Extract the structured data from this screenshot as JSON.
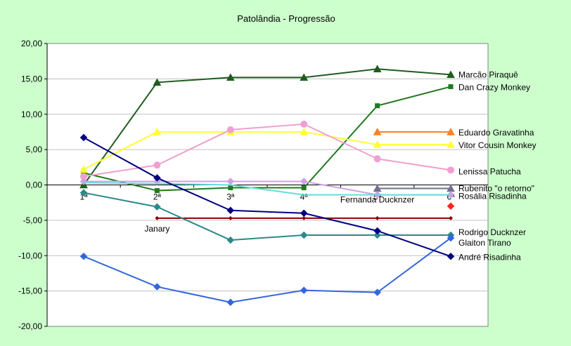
{
  "chart_data": {
    "type": "line",
    "title": "Patolândia - Progressão",
    "categories": [
      "1ª",
      "2ª",
      "3ª",
      "4ª",
      "5ª",
      "6ª"
    ],
    "ylim": [
      -20,
      20
    ],
    "yticks": [
      20,
      15,
      10,
      5,
      0,
      -5,
      -10,
      -15,
      -20
    ],
    "ytick_labels": [
      "20,00",
      "15,00",
      "10,00",
      "5,00",
      "0,00",
      "-5,00",
      "-10,00",
      "-15,00",
      "-20,00"
    ],
    "grid": true,
    "legend": "inline-right",
    "annotations": [
      {
        "text": "Janary",
        "category_index": 1,
        "y": -6.2
      },
      {
        "text": "Fernanda Ducknzer",
        "category_index": 4,
        "y": -2.1
      }
    ],
    "series": [
      {
        "name": "Marcão Piraquê",
        "color": "#1f5c1f",
        "marker": "triangle",
        "values": [
          0,
          14.5,
          15.2,
          15.2,
          16.4,
          15.6
        ]
      },
      {
        "name": "Dan Crazy Monkey",
        "color": "#1f7a1f",
        "marker": "square",
        "values": [
          1.7,
          -0.8,
          -0.4,
          -0.4,
          11.2,
          13.9
        ]
      },
      {
        "name": "Eduardo Gravatinha",
        "color": "#ff7f27",
        "marker": "triangle",
        "values": [
          null,
          null,
          null,
          null,
          7.5,
          7.5
        ]
      },
      {
        "name": "Vitor Cousin Monkey",
        "color": "#ffff33",
        "marker": "triangle",
        "values": [
          2.2,
          7.5,
          7.5,
          7.5,
          5.7,
          5.7
        ]
      },
      {
        "name": "Lenissa Patucha",
        "color": "#f0a0d0",
        "marker": "circle",
        "values": [
          1.2,
          2.8,
          7.8,
          8.6,
          3.7,
          2.1
        ]
      },
      {
        "name": "Rubenito \"o retorno\"",
        "color": "#707090",
        "marker": "triangle",
        "values": [
          null,
          null,
          null,
          null,
          -0.5,
          -0.5
        ]
      },
      {
        "name": "Rosália Risadinha",
        "color": "#d0a0e0",
        "marker": "diamond",
        "values": [
          0.5,
          0.5,
          0.5,
          0.5,
          -1.4,
          -1.4
        ]
      },
      {
        "name": "",
        "color": "#66dddd",
        "marker": "none",
        "values": [
          0.3,
          0.2,
          0,
          -1.4,
          -1.4,
          -1.4
        ]
      },
      {
        "name": "",
        "color": "#ff2020",
        "marker": "diamond",
        "values": [
          null,
          null,
          null,
          null,
          null,
          -3
        ]
      },
      {
        "name": "",
        "color": "#8b0000",
        "marker": "smalldiamond",
        "values": [
          null,
          -4.7,
          -4.7,
          -4.7,
          -4.7,
          -4.7
        ]
      },
      {
        "name": "Rodrigo Ducknzer",
        "color": "#2a8a8a",
        "marker": "diamond",
        "values": [
          -1.1,
          -3.1,
          -7.8,
          -7.1,
          -7.1,
          -7.1
        ]
      },
      {
        "name": "Glaiton Tirano",
        "color": "#3366dd",
        "marker": "diamond",
        "values": [
          -10.1,
          -14.4,
          -16.6,
          -14.9,
          -15.2,
          -7.5
        ]
      },
      {
        "name": "André Risadinha",
        "color": "#000080",
        "marker": "diamond",
        "values": [
          6.7,
          1,
          -3.6,
          -4,
          -6.5,
          -10.1
        ]
      }
    ],
    "labels": [
      {
        "text": "Marcão Piraquê",
        "y": 15.7
      },
      {
        "text": "Dan Crazy Monkey",
        "y": 13.9
      },
      {
        "text": "Eduardo Gravatinha",
        "y": 7.5
      },
      {
        "text": "Vitor Cousin Monkey",
        "y": 5.7
      },
      {
        "text": "Lenissa Patucha",
        "y": 2.0
      },
      {
        "text": "Rubenito \"o retorno\"",
        "y": -0.4
      },
      {
        "text": "Rosália Risadinha",
        "y": -1.5
      },
      {
        "text": "Rodrigo Ducknzer",
        "y": -6.6
      },
      {
        "text": "Glaiton Tirano",
        "y": -8.1
      },
      {
        "text": "André Risadinha",
        "y": -10.1
      }
    ]
  }
}
